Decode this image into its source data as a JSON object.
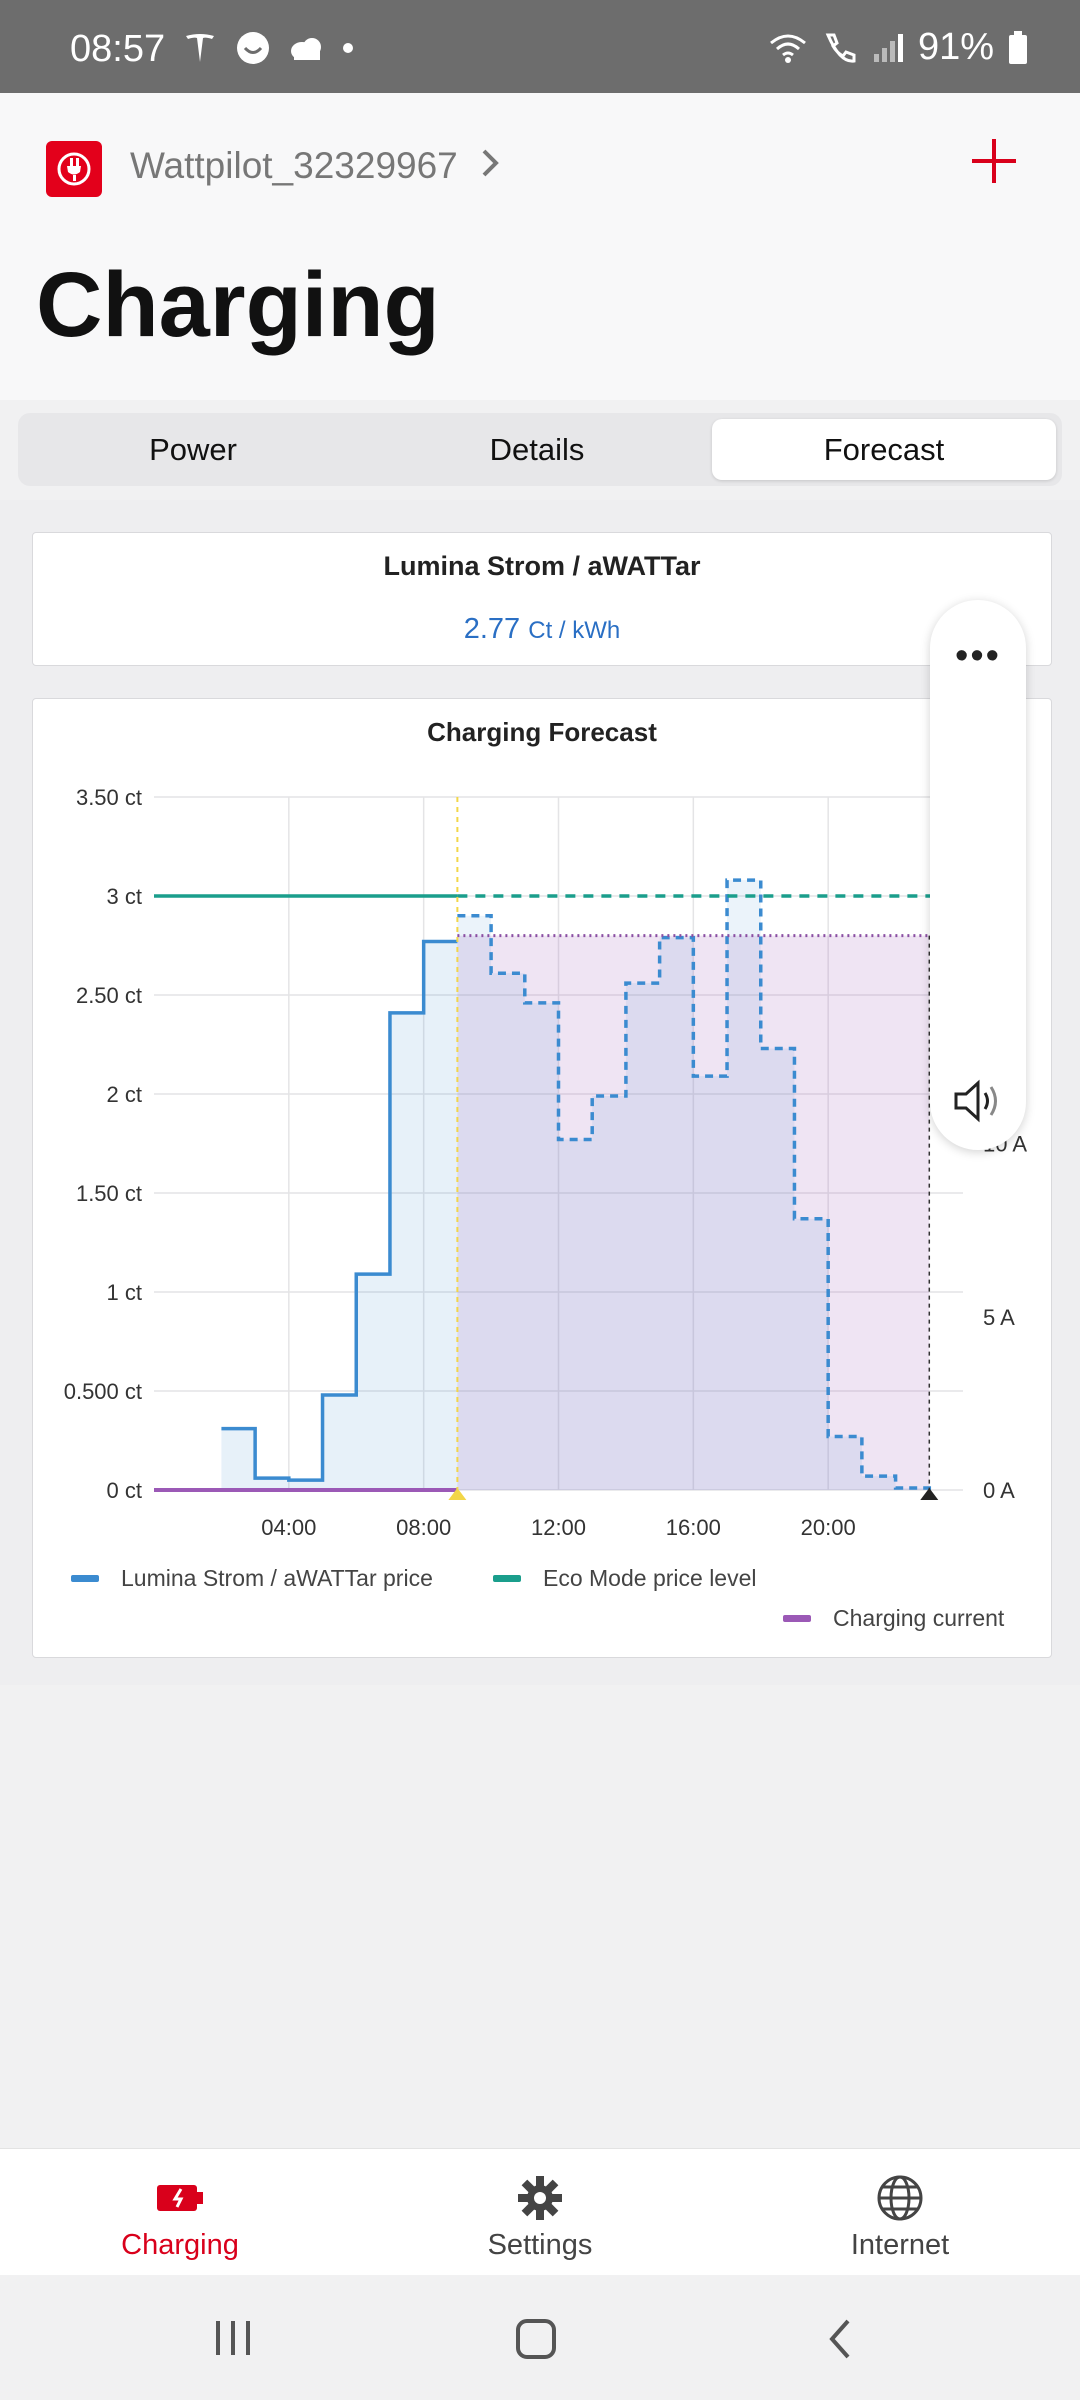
{
  "status_bar": {
    "time": "08:57",
    "battery": "91%",
    "icons": [
      "tesla-icon",
      "face-icon",
      "cloud-icon",
      "dot-icon",
      "wifi-icon",
      "call-icon",
      "signal-icon",
      "battery-icon"
    ]
  },
  "header": {
    "device_name": "Wattpilot_32329967",
    "page_title": "Charging",
    "accent": "#e3001b"
  },
  "tabs": [
    {
      "label": "Power",
      "active": false
    },
    {
      "label": "Details",
      "active": false
    },
    {
      "label": "Forecast",
      "active": true
    }
  ],
  "price_card": {
    "title": "Lumina Strom / aWATTar",
    "value": "2.77",
    "unit": "Ct / kWh"
  },
  "chart_data": {
    "type": "line",
    "title": "Charging Forecast",
    "x_unit": "hour of day",
    "x_range": [
      0,
      24
    ],
    "x_ticks": [
      "04:00",
      "08:00",
      "12:00",
      "16:00",
      "20:00"
    ],
    "y_left_ticks": [
      "0 ct",
      "0.500 ct",
      "1 ct",
      "1.50 ct",
      "2 ct",
      "2.50 ct",
      "3 ct",
      "3.50 ct"
    ],
    "y_left_range": [
      0,
      3.5
    ],
    "y_right_ticks": [
      "0 A",
      "5 A",
      "10 A"
    ],
    "y_right_range": [
      0,
      20
    ],
    "grid": true,
    "now_marker_hour": 9,
    "series": [
      {
        "name": "Lumina Strom / aWATTar price",
        "color": "#3b8bd0",
        "style": "step",
        "points": [
          [
            0,
            0.31
          ],
          [
            1,
            0.06
          ],
          [
            2,
            0.05
          ],
          [
            3,
            0.48
          ],
          [
            4,
            1.09
          ],
          [
            5,
            2.41
          ],
          [
            6,
            2.77
          ],
          [
            7,
            2.9
          ],
          [
            8,
            2.61
          ],
          [
            9,
            2.46
          ],
          [
            10,
            1.77
          ],
          [
            11,
            1.99
          ],
          [
            12,
            2.56
          ],
          [
            13,
            2.79
          ],
          [
            14,
            2.09
          ],
          [
            15,
            3.08
          ],
          [
            16,
            2.23
          ],
          [
            17,
            1.37
          ],
          [
            18,
            0.27
          ],
          [
            19,
            0.07
          ],
          [
            20,
            0.01
          ],
          [
            21,
            0
          ]
        ],
        "start_hour": 2
      },
      {
        "name": "Eco Mode price level",
        "color": "#1a9e8c",
        "value": 3
      },
      {
        "name": "Charging current",
        "color": "#9b59b6",
        "value_before_now": 0,
        "planned_level_ct": 2.8
      }
    ]
  },
  "legend": {
    "item1": "Lumina Strom / aWATTar price",
    "item2": "Eco Mode price level",
    "item3": "Charging current"
  },
  "bottom_nav": [
    {
      "label": "Charging",
      "icon": "charging-icon",
      "active": true
    },
    {
      "label": "Settings",
      "icon": "gear-icon",
      "active": false
    },
    {
      "label": "Internet",
      "icon": "globe-icon",
      "active": false
    }
  ]
}
